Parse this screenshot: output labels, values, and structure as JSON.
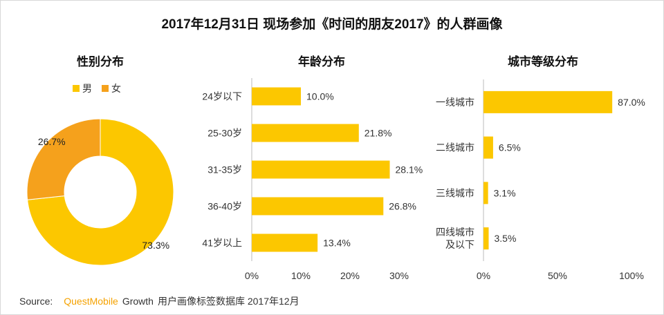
{
  "title": "2017年12月31日 现场参加《时间的朋友2017》的人群画像",
  "colors": {
    "male": "#fcc700",
    "female": "#f5a11c",
    "bar": "#fcc700",
    "brand": "#f5a200"
  },
  "legend": [
    {
      "label": "男",
      "color": "#fcc700"
    },
    {
      "label": "女",
      "color": "#f5a11c"
    }
  ],
  "source": {
    "prefix": "Source:",
    "brand": "QuestMobile",
    "suffix": "Growth",
    "text": "用户画像标签数据库 2017年12月"
  },
  "chart_data": [
    {
      "type": "pie",
      "title": "性别分布",
      "donut": true,
      "categories": [
        "男",
        "女"
      ],
      "values": [
        73.3,
        26.7
      ],
      "labels": [
        "73.3%",
        "26.7%"
      ]
    },
    {
      "type": "bar",
      "orientation": "horizontal",
      "title": "年龄分布",
      "categories": [
        "24岁以下",
        "25-30岁",
        "31-35岁",
        "36-40岁",
        "41岁以上"
      ],
      "values": [
        10.0,
        21.8,
        28.1,
        26.8,
        13.4
      ],
      "labels": [
        "10.0%",
        "21.8%",
        "28.1%",
        "26.8%",
        "13.4%"
      ],
      "xlim": [
        0,
        30
      ],
      "ticks": [
        "0%",
        "10%",
        "20%",
        "30%"
      ]
    },
    {
      "type": "bar",
      "orientation": "horizontal",
      "title": "城市等级分布",
      "categories": [
        "一线城市",
        "二线城市",
        "三线城市",
        "四线城市及以下"
      ],
      "category_lines": [
        [
          "一线城市"
        ],
        [
          "二线城市"
        ],
        [
          "三线城市"
        ],
        [
          "四线城市",
          "及以下"
        ]
      ],
      "values": [
        87.0,
        6.5,
        3.1,
        3.5
      ],
      "labels": [
        "87.0%",
        "6.5%",
        "3.1%",
        "3.5%"
      ],
      "xlim": [
        0,
        100
      ],
      "ticks": [
        "0%",
        "50%",
        "100%"
      ]
    }
  ]
}
